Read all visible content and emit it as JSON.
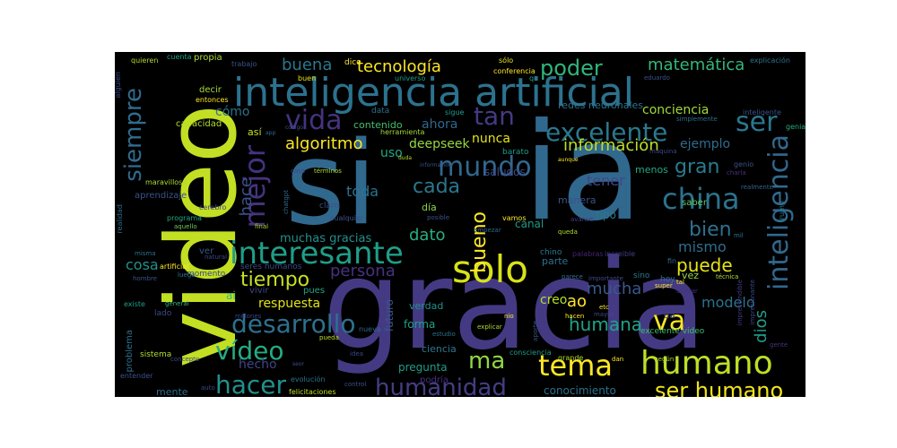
{
  "words": [
    {
      "text": "si",
      "color": "#31688e"
    },
    {
      "text": "ia",
      "color": "#31688e"
    },
    {
      "text": "gracia",
      "color": "#443a83"
    },
    {
      "text": "video",
      "color": "#c2df23"
    },
    {
      "text": "inteligencia artificial",
      "color": "#2c728e"
    },
    {
      "text": "solo",
      "color": "#d8e219"
    },
    {
      "text": "interesante",
      "color": "#1f9e89"
    },
    {
      "text": "humano",
      "color": "#bddf26"
    },
    {
      "text": "mundo",
      "color": "#31688e"
    },
    {
      "text": "china",
      "color": "#2c728e"
    },
    {
      "text": "tema",
      "color": "#fde725"
    },
    {
      "text": "inteligencia",
      "color": "#31688e"
    },
    {
      "text": "vida",
      "color": "#46337f"
    },
    {
      "text": "mejor",
      "color": "#46327e"
    },
    {
      "text": "humanidad",
      "color": "#433e85"
    },
    {
      "text": "excelente",
      "color": "#2a788e"
    },
    {
      "text": "siempre",
      "color": "#2f6c8e"
    },
    {
      "text": "tan",
      "color": "#443a83"
    },
    {
      "text": "hacer",
      "color": "#21918c"
    },
    {
      "text": "vídeo",
      "color": "#25ac82"
    },
    {
      "text": "desarrollo",
      "color": "#2c718e"
    },
    {
      "text": "ser humano",
      "color": "#f1e51d"
    },
    {
      "text": "va",
      "color": "#fde725"
    },
    {
      "text": "ser",
      "color": "#2a788e"
    },
    {
      "text": "ma",
      "color": "#90d743"
    },
    {
      "text": "bueno",
      "color": "#fde725"
    },
    {
      "text": "puede",
      "color": "#e7e419"
    },
    {
      "text": "tiempo",
      "color": "#c8e020"
    },
    {
      "text": "cada",
      "color": "#2a778e"
    },
    {
      "text": "gran",
      "color": "#287c8e"
    },
    {
      "text": "bien",
      "color": "#2d708e"
    },
    {
      "text": "humana",
      "color": "#1fa187"
    },
    {
      "text": "poder",
      "color": "#31b57b"
    },
    {
      "text": "tecnología",
      "color": "#fde725"
    },
    {
      "text": "matemática",
      "color": "#35b779"
    },
    {
      "text": "algoritmo",
      "color": "#fde725"
    },
    {
      "text": "buena",
      "color": "#2a788e"
    },
    {
      "text": "hace",
      "color": "#3b528b"
    },
    {
      "text": "persona",
      "color": "#46327e"
    },
    {
      "text": "dato",
      "color": "#28ae80"
    },
    {
      "text": "mucha",
      "color": "#38588c"
    },
    {
      "text": "información",
      "color": "#bddf26"
    },
    {
      "text": "dios",
      "color": "#1f9e89"
    },
    {
      "text": "muchas gracias",
      "color": "#21918c"
    },
    {
      "text": "cómo",
      "color": "#2c728e"
    },
    {
      "text": "toda",
      "color": "#2b748e"
    },
    {
      "text": "tener",
      "color": "#3f4889"
    },
    {
      "text": "modelo",
      "color": "#2c728e"
    },
    {
      "text": "mismo",
      "color": "#2f6c8e"
    },
    {
      "text": "cosa",
      "color": "#21918c"
    },
    {
      "text": "respuesta",
      "color": "#e2e418"
    },
    {
      "text": "hecho",
      "color": "#414487"
    },
    {
      "text": "ahora",
      "color": "#30678d"
    },
    {
      "text": "nunca",
      "color": "#e5e419"
    },
    {
      "text": "uso",
      "color": "#23a983"
    },
    {
      "text": "ejemplo",
      "color": "#2f6c8e"
    },
    {
      "text": "conciencia",
      "color": "#9fda3a"
    },
    {
      "text": "creo",
      "color": "#b5de2b"
    },
    {
      "text": "deepseek",
      "color": "#98d83e"
    },
    {
      "text": "ao",
      "color": "#fde725"
    },
    {
      "text": "conocimiento",
      "color": "#2c728e"
    },
    {
      "text": "pregunta",
      "color": "#1f9e89"
    },
    {
      "text": "forma",
      "color": "#1fa187"
    },
    {
      "text": "canal",
      "color": "#1f9a8a"
    },
    {
      "text": "futuro",
      "color": "#39568c"
    },
    {
      "text": "saludos",
      "color": "#3e4989"
    },
    {
      "text": "tipo",
      "color": "#2a788e"
    },
    {
      "text": "redes neuronales",
      "color": "#2c728e"
    },
    {
      "text": "contenido",
      "color": "#45bf70"
    },
    {
      "text": "mente",
      "color": "#2e6e8e"
    },
    {
      "text": "ciencia",
      "color": "#2a788e"
    },
    {
      "text": "manera",
      "color": "#3b528b"
    },
    {
      "text": "día",
      "color": "#86d549"
    },
    {
      "text": "verdad",
      "color": "#21918c"
    },
    {
      "text": "parte",
      "color": "#2e6f8e"
    },
    {
      "text": "menos",
      "color": "#22a884"
    },
    {
      "text": "así",
      "color": "#c8e020"
    },
    {
      "text": "capacidad",
      "color": "#b5de2b"
    },
    {
      "text": "aprendizaje",
      "color": "#3b528b"
    },
    {
      "text": "propia",
      "color": "#addc30"
    },
    {
      "text": "decir",
      "color": "#a8db34"
    },
    {
      "text": "sistema",
      "color": "#b5de2b"
    },
    {
      "text": "podría",
      "color": "#46307e"
    },
    {
      "text": "excelente video",
      "color": "#40bd72"
    },
    {
      "text": "momento",
      "color": "#414487"
    },
    {
      "text": "lado",
      "color": "#3e4989"
    },
    {
      "text": "problema",
      "color": "#2c728e"
    },
    {
      "text": "data",
      "color": "#2c728e"
    },
    {
      "text": "vez",
      "color": "#95d840"
    },
    {
      "text": "ver",
      "color": "#38598c"
    },
    {
      "text": "pues",
      "color": "#20a386"
    },
    {
      "text": "vivir",
      "color": "#414487"
    },
    {
      "text": "seres humanos",
      "color": "#3e4989"
    },
    {
      "text": "da",
      "color": "#3f4889"
    },
    {
      "text": "hoy",
      "color": "#2d708e"
    },
    {
      "text": "sino",
      "color": "#297a8e"
    },
    {
      "text": "barato",
      "color": "#1f9a8a"
    },
    {
      "text": "claro",
      "color": "#3b528b"
    },
    {
      "text": "ai",
      "color": "#31b57b"
    },
    {
      "text": "cualquier",
      "color": "#3a538b"
    },
    {
      "text": "chino",
      "color": "#2a778e"
    },
    {
      "text": "palabras",
      "color": "#482475"
    },
    {
      "text": "increible",
      "color": "#433e85"
    },
    {
      "text": "saber",
      "color": "#5ec962"
    },
    {
      "text": "fin",
      "color": "#2f6b8e"
    },
    {
      "text": "entonces",
      "color": "#fde725"
    },
    {
      "text": "herramienta",
      "color": "#a2da37"
    },
    {
      "text": "trabajo",
      "color": "#3b528b"
    },
    {
      "text": "universo",
      "color": "#1f9e89"
    },
    {
      "text": "sigue",
      "color": "#1f9e89"
    },
    {
      "text": "simplemente",
      "color": "#2c728e"
    },
    {
      "text": "inteligente",
      "color": "#3b528b"
    },
    {
      "text": "explicación",
      "color": "#2c728e"
    },
    {
      "text": "quieren",
      "color": "#addc30"
    },
    {
      "text": "alguien",
      "color": "#3e4a89"
    },
    {
      "text": "cuenta",
      "color": "#1f9e89"
    },
    {
      "text": "dice",
      "color": "#fde725"
    },
    {
      "text": "sólo",
      "color": "#f1e51d"
    },
    {
      "text": "conferencia",
      "color": "#fde725"
    },
    {
      "text": "eduardo",
      "color": "#3b528b"
    },
    {
      "text": "buen",
      "color": "#e5e419"
    },
    {
      "text": "q",
      "color": "#1fa187"
    },
    {
      "text": "genial",
      "color": "#26ad81"
    },
    {
      "text": "genio",
      "color": "#3b528b"
    },
    {
      "text": "realmente",
      "color": "#31688e"
    },
    {
      "text": "charla",
      "color": "#46337f"
    },
    {
      "text": "máquina",
      "color": "#3e4989"
    },
    {
      "text": "trump",
      "color": "#2a788e"
    },
    {
      "text": "mil",
      "color": "#2c728e"
    },
    {
      "text": "maravillosa",
      "color": "#addc30"
    },
    {
      "text": "cerebro",
      "color": "#414487"
    },
    {
      "text": "programa",
      "color": "#22a884"
    },
    {
      "text": "aquello",
      "color": "#6ccd5a"
    },
    {
      "text": "realidad",
      "color": "#2d708e"
    },
    {
      "text": "misma",
      "color": "#2c728e"
    },
    {
      "text": "artificial",
      "color": "#fde725"
    },
    {
      "text": "luego",
      "color": "#2a788e"
    },
    {
      "text": "hombre",
      "color": "#3b528b"
    },
    {
      "text": "general",
      "color": "#35b779"
    },
    {
      "text": "millones",
      "color": "#433e85"
    },
    {
      "text": "existe",
      "color": "#1f9e89"
    },
    {
      "text": "concepto",
      "color": "#3e4989"
    },
    {
      "text": "entender",
      "color": "#3b528b"
    },
    {
      "text": "evolución",
      "color": "#2c728e"
    },
    {
      "text": "felicitaciones",
      "color": "#bddf26"
    },
    {
      "text": "control",
      "color": "#3b528b"
    },
    {
      "text": "idea",
      "color": "#3e4989"
    },
    {
      "text": "consciencia",
      "color": "#1f9e89"
    },
    {
      "text": "grande",
      "color": "#addc30"
    },
    {
      "text": "dan",
      "color": "#fde725"
    },
    {
      "text": "según",
      "color": "#addc30"
    },
    {
      "text": "gente",
      "color": "#46327e"
    },
    {
      "text": "nueva",
      "color": "#30678d"
    },
    {
      "text": "estudio",
      "color": "#2c728e"
    },
    {
      "text": "aporte",
      "color": "#3b528b"
    },
    {
      "text": "mayor",
      "color": "#3e4989"
    },
    {
      "text": "explicar",
      "color": "#addc30"
    },
    {
      "text": "hacen",
      "color": "#fde725"
    },
    {
      "text": "etc",
      "color": "#fde725"
    },
    {
      "text": "pueda",
      "color": "#c2df23"
    },
    {
      "text": "posible",
      "color": "#3b528b"
    },
    {
      "text": "vamos",
      "color": "#fde725"
    },
    {
      "text": "queda",
      "color": "#addc30"
    },
    {
      "text": "avance",
      "color": "#433e85"
    },
    {
      "text": "empezar",
      "color": "#31688e"
    },
    {
      "text": "parece",
      "color": "#2c728e"
    },
    {
      "text": "importante",
      "color": "#3e4989"
    },
    {
      "text": "utilizar",
      "color": "#46327e"
    },
    {
      "text": "imprescindible",
      "color": "#433e85"
    },
    {
      "text": "impresionante",
      "color": "#3e4989"
    },
    {
      "text": "super",
      "color": "#fde725"
    },
    {
      "text": "tal",
      "color": "#fde725"
    },
    {
      "text": "técnica",
      "color": "#addc30"
    },
    {
      "text": "natural",
      "color": "#3e4989"
    },
    {
      "text": "final",
      "color": "#addc30"
    },
    {
      "text": "chatgpt",
      "color": "#31688e"
    },
    {
      "text": "términos",
      "color": "#addc30"
    },
    {
      "text": "caso",
      "color": "#3e4989"
    },
    {
      "text": "código",
      "color": "#3b528b"
    },
    {
      "text": "app",
      "color": "#31688e"
    },
    {
      "text": "duda",
      "color": "#addc30"
    },
    {
      "text": "información",
      "color": "#3b528b"
    },
    {
      "text": "aunque",
      "color": "#fde725"
    },
    {
      "text": "seor",
      "color": "#3b528b"
    },
    {
      "text": "auto",
      "color": "#3e4989"
    },
    {
      "text": "nio",
      "color": "#fde725"
    }
  ]
}
